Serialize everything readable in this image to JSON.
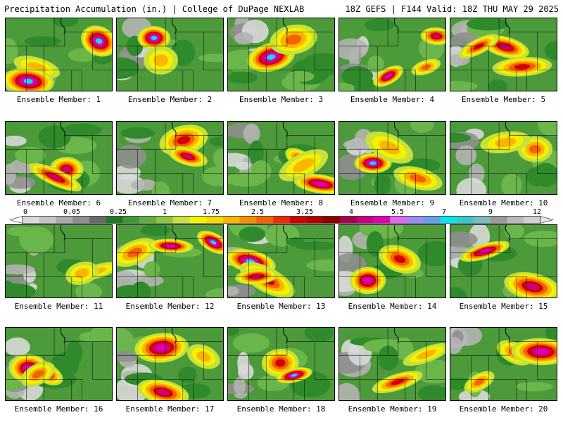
{
  "header": {
    "title": "Precipitation Accumulation (in.) | College of DuPage NEXLAB",
    "run_info": "18Z GEFS | F144 Valid: 18Z THU MAY 29 2025"
  },
  "members": [
    {
      "label": "Ensemble Member: 1"
    },
    {
      "label": "Ensemble Member: 2"
    },
    {
      "label": "Ensemble Member: 3"
    },
    {
      "label": "Ensemble Member: 4"
    },
    {
      "label": "Ensemble Member: 5"
    },
    {
      "label": "Ensemble Member: 6"
    },
    {
      "label": "Ensemble Member: 7"
    },
    {
      "label": "Ensemble Member: 8"
    },
    {
      "label": "Ensemble Member: 9"
    },
    {
      "label": "Ensemble Member: 10"
    },
    {
      "label": "Ensemble Member: 11"
    },
    {
      "label": "Ensemble Member: 12"
    },
    {
      "label": "Ensemble Member: 13"
    },
    {
      "label": "Ensemble Member: 14"
    },
    {
      "label": "Ensemble Member: 15"
    },
    {
      "label": "Ensemble Member: 16"
    },
    {
      "label": "Ensemble Member: 17"
    },
    {
      "label": "Ensemble Member: 18"
    },
    {
      "label": "Ensemble Member: 19"
    },
    {
      "label": "Ensemble Member: 20"
    }
  ],
  "colorbar": {
    "labels": [
      "0",
      "0.05",
      "0.25",
      "1",
      "1.75",
      "2.5",
      "3.25",
      "4",
      "5.5",
      "7",
      "9",
      "12"
    ],
    "colors": [
      "#d9d9d9",
      "#c4c4c4",
      "#aaaaaa",
      "#8f8f8f",
      "#6a6a6a",
      "#1e7a22",
      "#3a9a33",
      "#5eb03c",
      "#8cc63f",
      "#c7e03a",
      "#f2f200",
      "#f9d800",
      "#fbb400",
      "#f98c00",
      "#f56200",
      "#ee2a00",
      "#d40000",
      "#b00000",
      "#8c0000",
      "#a8004f",
      "#c8007e",
      "#e000b4",
      "#e466f0",
      "#9a8cf5",
      "#5fa0f2",
      "#00e5ee",
      "#38c7c7",
      "#78bcbc",
      "#9a9a9a",
      "#b8b8b8",
      "#d0d0d0"
    ]
  }
}
